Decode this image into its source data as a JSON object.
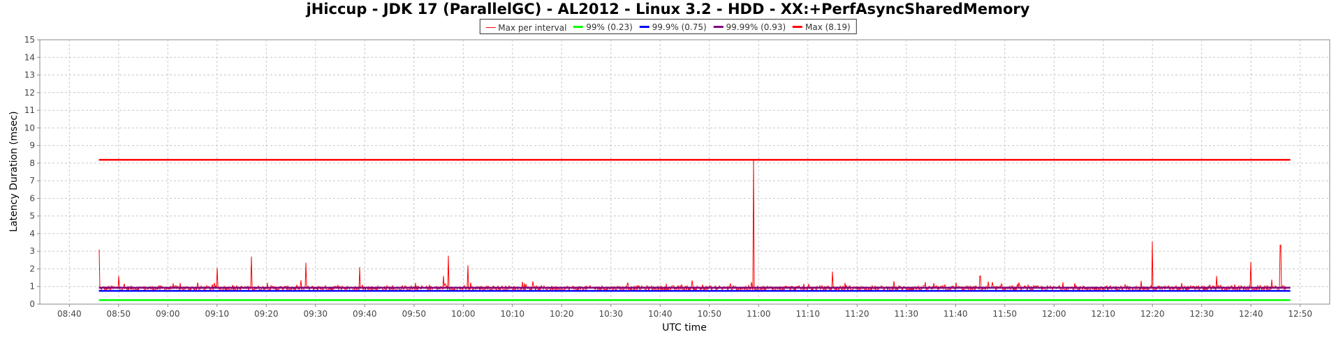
{
  "chart_data": {
    "type": "line",
    "title": "jHiccup - JDK 17 (ParallelGC) - AL2012 - Linux 3.2 - HDD - XX:+PerfAsyncSharedMemory",
    "xlabel": "UTC time",
    "ylabel": "Latency Duration (msec)",
    "xlim": [
      "08:34",
      "12:56"
    ],
    "ylim": [
      0,
      15
    ],
    "x_ticks": [
      "08:40",
      "08:50",
      "09:00",
      "09:10",
      "09:20",
      "09:30",
      "09:40",
      "09:50",
      "10:00",
      "10:10",
      "10:20",
      "10:30",
      "10:40",
      "10:50",
      "11:00",
      "11:10",
      "11:20",
      "11:30",
      "11:40",
      "11:50",
      "12:00",
      "12:10",
      "12:20",
      "12:30",
      "12:40",
      "12:50"
    ],
    "y_ticks": [
      0,
      1,
      2,
      3,
      4,
      5,
      6,
      7,
      8,
      9,
      10,
      11,
      12,
      13,
      14,
      15
    ],
    "grid": true,
    "legend_position": "top-center",
    "series": [
      {
        "name": "Max per interval",
        "color": "#ff0000",
        "style": "thin-line",
        "x_range": [
          "08:46",
          "12:47"
        ],
        "baseline": 0.9,
        "spikes": [
          {
            "x": "08:46",
            "y": 3.1
          },
          {
            "x": "08:50",
            "y": 1.6
          },
          {
            "x": "09:10",
            "y": 2.05
          },
          {
            "x": "09:17",
            "y": 2.7
          },
          {
            "x": "09:28",
            "y": 2.35
          },
          {
            "x": "09:39",
            "y": 2.1
          },
          {
            "x": "09:56",
            "y": 1.6
          },
          {
            "x": "09:57",
            "y": 2.75
          },
          {
            "x": "10:01",
            "y": 2.2
          },
          {
            "x": "10:59",
            "y": 8.19
          },
          {
            "x": "11:15",
            "y": 1.85
          },
          {
            "x": "11:45",
            "y": 1.6
          },
          {
            "x": "12:20",
            "y": 3.55
          },
          {
            "x": "12:33",
            "y": 1.6
          },
          {
            "x": "12:40",
            "y": 2.4
          },
          {
            "x": "12:46",
            "y": 3.35
          }
        ]
      },
      {
        "name": "99% (0.23)",
        "color": "#00ff00",
        "value": 0.23,
        "x_range": [
          "08:46",
          "12:48"
        ]
      },
      {
        "name": "99.9% (0.75)",
        "color": "#0000ff",
        "value": 0.75,
        "x_range": [
          "08:46",
          "12:48"
        ]
      },
      {
        "name": "99.99% (0.93)",
        "color": "#800080",
        "value": 0.93,
        "x_range": [
          "08:46",
          "12:48"
        ]
      },
      {
        "name": "Max (8.19)",
        "color": "#ff0000",
        "value": 8.19,
        "x_range": [
          "08:46",
          "12:48"
        ]
      }
    ]
  }
}
